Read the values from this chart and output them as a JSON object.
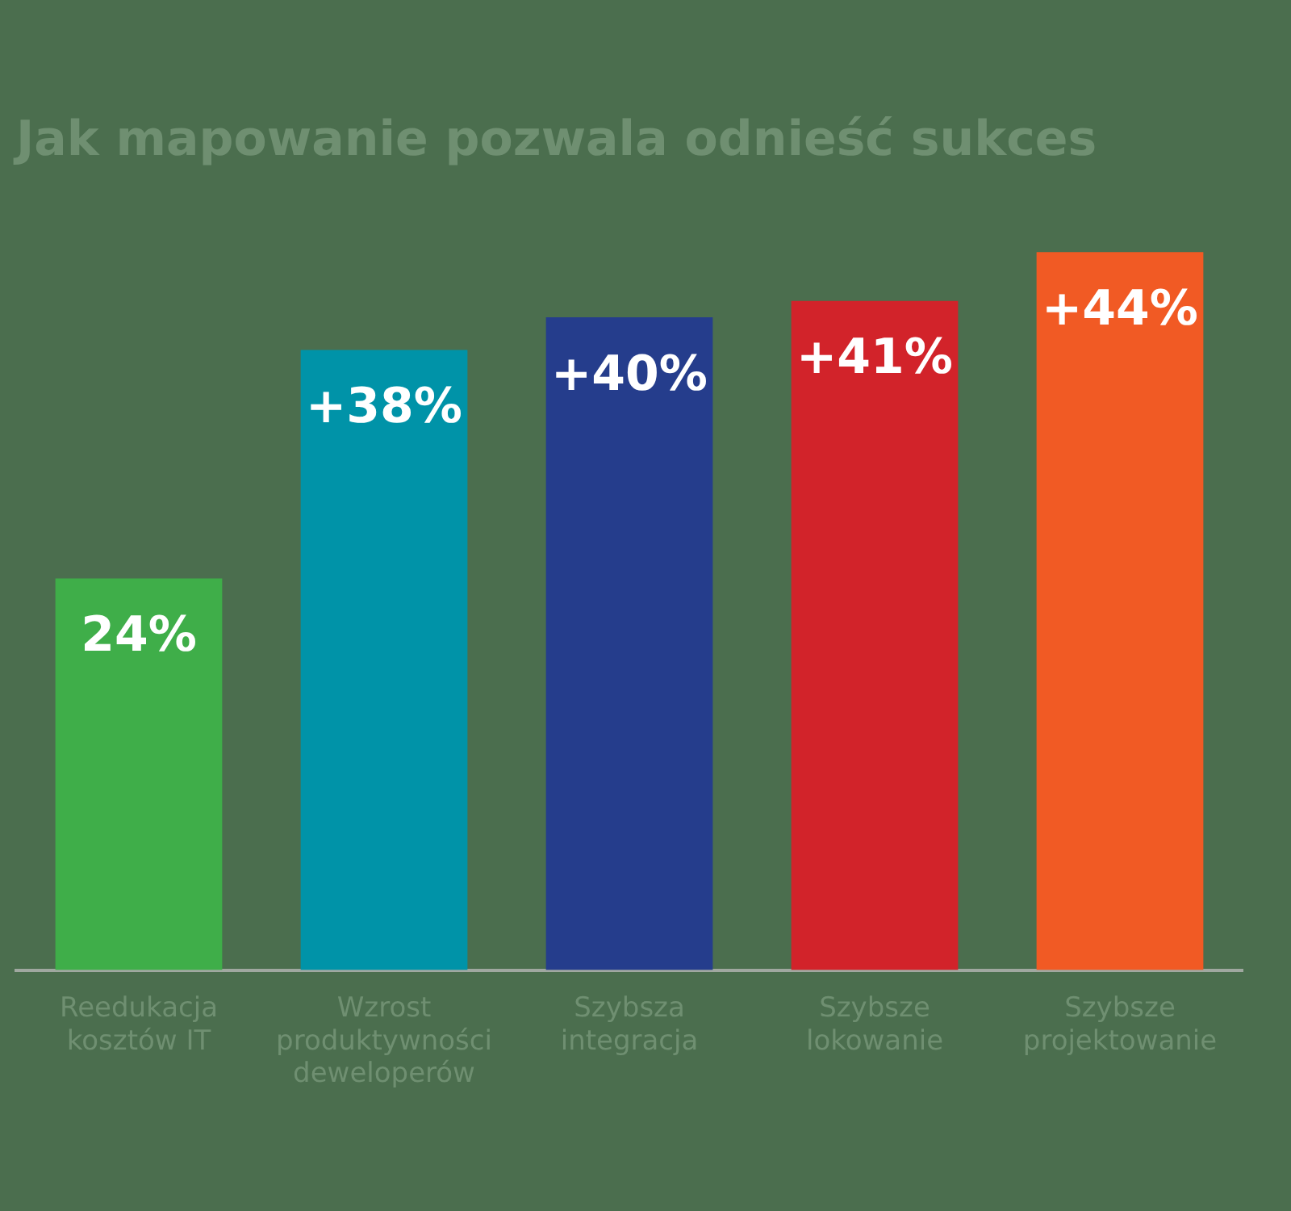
{
  "chart_data": {
    "type": "bar",
    "title": "Jak mapowanie pozwala odnieść sukces",
    "categories": [
      "Reedukacja kosztów IT",
      "Wzrost produktywności deweloperów",
      "Szybsza integracja",
      "Szybsze lokowanie",
      "Szybsze projektowanie"
    ],
    "values": [
      24,
      38,
      40,
      41,
      44
    ],
    "colors": [
      "#3fae49",
      "#0093a8",
      "#253d8c",
      "#d2232a",
      "#f15a24"
    ],
    "value_labels": [
      "24%",
      "+38%",
      "+40%",
      "+41%",
      "+44%"
    ],
    "grid": false,
    "legend": false
  }
}
